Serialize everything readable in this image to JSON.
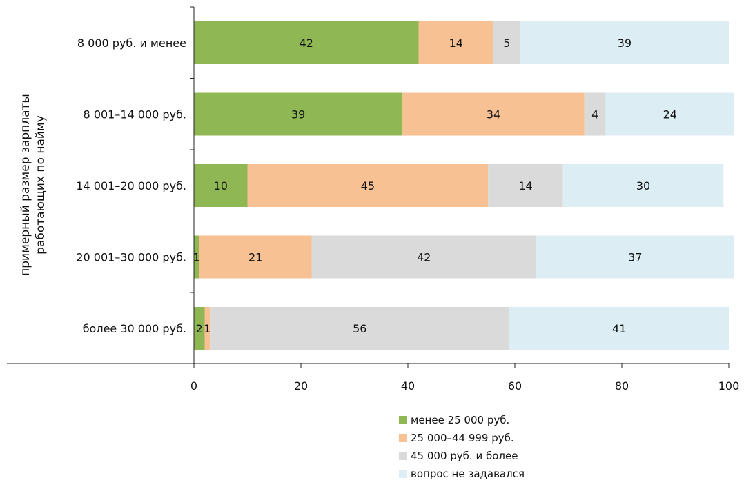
{
  "chart_data": {
    "type": "bar",
    "orientation": "horizontal",
    "stacked": true,
    "ylabel": "примерный размер зарплаты работающих по найму",
    "ylabel_lines": [
      "примерный размер зарплаты",
      "работающих по найму"
    ],
    "xlabel": "",
    "xlim": [
      0,
      100
    ],
    "xticks": [
      0,
      20,
      40,
      60,
      80,
      100
    ],
    "grid": false,
    "legend_position": "bottom-right",
    "categories": [
      "8 000 руб. и менее",
      "8 001–14 000 руб.",
      "14 001–20 000 руб.",
      "20 001–30 000 руб.",
      "более 30 000 руб."
    ],
    "series": [
      {
        "name": "менее 25 000 руб.",
        "color": "#8fb854",
        "values": [
          42,
          39,
          10,
          1,
          2
        ]
      },
      {
        "name": "25 000–44 999 руб.",
        "color": "#f8c193",
        "values": [
          14,
          34,
          45,
          21,
          1
        ]
      },
      {
        "name": "45 000 руб. и более",
        "color": "#dadada",
        "values": [
          5,
          4,
          14,
          42,
          56
        ]
      },
      {
        "name": "вопрос не задавался",
        "color": "#dceef4",
        "values": [
          39,
          24,
          30,
          37,
          41
        ]
      }
    ]
  }
}
